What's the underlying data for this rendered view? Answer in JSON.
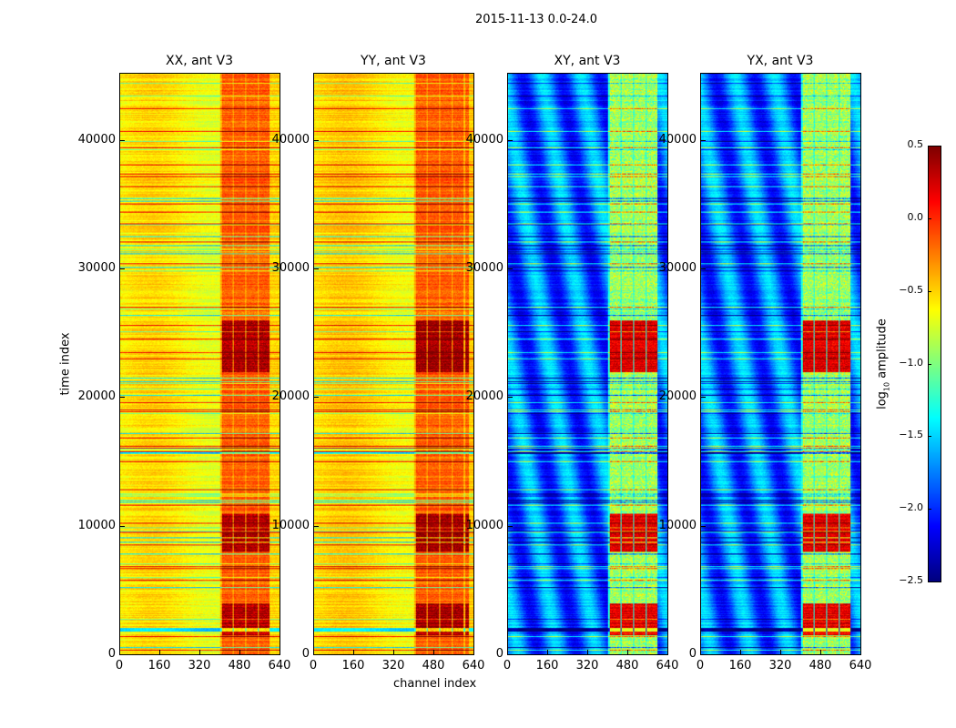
{
  "chart_data": {
    "type": "heatmap",
    "suptitle": "2015-11-13 0.0-24.0",
    "xlabel": "channel index",
    "ylabel": "time index",
    "xlim": [
      0,
      640
    ],
    "ylim": [
      0,
      45200
    ],
    "xticks": [
      "0",
      "160",
      "320",
      "480",
      "640"
    ],
    "yticks": [
      "0",
      "10000",
      "20000",
      "30000",
      "40000"
    ],
    "xtick_values": [
      0,
      160,
      320,
      480,
      640
    ],
    "ytick_values": [
      0,
      10000,
      20000,
      30000,
      40000
    ],
    "colormap": "jet",
    "colorbar": {
      "label": "log10 amplitude",
      "label_main": "log",
      "label_sub": "10",
      "label_rest": " amplitude",
      "range": [
        -2.5,
        0.5
      ],
      "ticks": [
        "0.5",
        "0.0",
        "−0.5",
        "−1.0",
        "−1.5",
        "−2.0",
        "−2.5"
      ],
      "tick_values": [
        0.5,
        0.0,
        -0.5,
        -1.0,
        -1.5,
        -2.0,
        -2.5
      ]
    },
    "panels": [
      {
        "title": "XX, ant V3",
        "base_level": -0.6,
        "band_channels": [
          400,
          600
        ],
        "band_level": -0.15,
        "hot_time_ranges": [
          [
            1500,
            4000
          ],
          [
            8000,
            11000
          ],
          [
            22000,
            26000
          ]
        ],
        "hot_level": 0.35
      },
      {
        "title": "YY, ant V3",
        "base_level": -0.55,
        "band_channels": [
          400,
          620
        ],
        "band_level": -0.15,
        "hot_time_ranges": [
          [
            1500,
            4000
          ],
          [
            8000,
            11000
          ],
          [
            22000,
            26000
          ]
        ],
        "hot_level": 0.4
      },
      {
        "title": "XY, ant V3",
        "base_level": -1.8,
        "band_channels": [
          400,
          600
        ],
        "band_level": -0.9,
        "hot_time_ranges": [
          [
            1500,
            4000
          ],
          [
            8000,
            11000
          ],
          [
            22000,
            26000
          ]
        ],
        "hot_level": 0.2
      },
      {
        "title": "YX, ant V3",
        "base_level": -1.8,
        "band_channels": [
          400,
          600
        ],
        "band_level": -0.9,
        "hot_time_ranges": [
          [
            1500,
            4000
          ],
          [
            8000,
            11000
          ],
          [
            22000,
            26000
          ]
        ],
        "hot_level": 0.2
      }
    ]
  }
}
